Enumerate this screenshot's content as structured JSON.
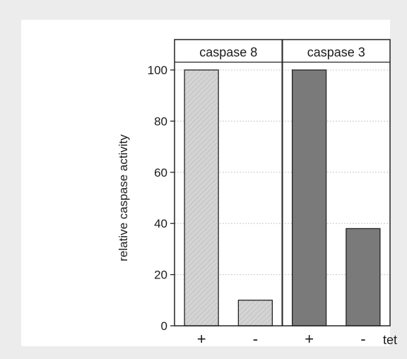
{
  "chart_data": {
    "type": "bar",
    "ylabel": "relative caspase activity",
    "xlabel": "tet",
    "ylim": [
      0,
      110
    ],
    "yticks": [
      0,
      20,
      40,
      60,
      80,
      100
    ],
    "grid": true,
    "panels": [
      {
        "title": "caspase 8",
        "categories": [
          "+",
          "-"
        ],
        "values": [
          100,
          10
        ],
        "color": "#d2d2d2",
        "hatched": true
      },
      {
        "title": "caspase 3",
        "categories": [
          "+",
          "-"
        ],
        "values": [
          100,
          38
        ],
        "color": "#7a7a7a",
        "hatched": false
      }
    ]
  }
}
